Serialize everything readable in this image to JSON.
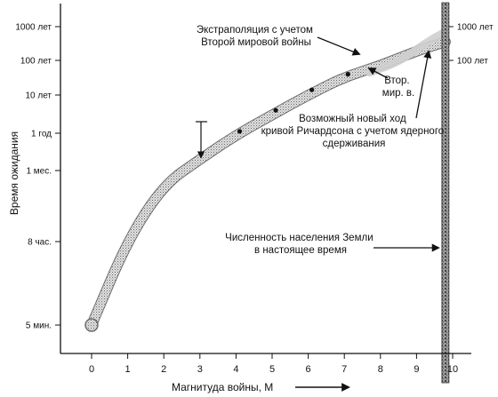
{
  "chart_data": {
    "type": "line",
    "title": "",
    "xlabel": "Магнитуда войны, М",
    "ylabel": "Время ожидания",
    "xlim": [
      -0.5,
      10.2
    ],
    "x_ticks": [
      0,
      1,
      2,
      3,
      4,
      5,
      6,
      7,
      8,
      9,
      10
    ],
    "y_ticks": [
      {
        "label": "1000 лет",
        "level": 7
      },
      {
        "label": "100 лет",
        "level": 6
      },
      {
        "label": "10 лет",
        "level": 5
      },
      {
        "label": "1 год",
        "level": 4
      },
      {
        "label": "1 мес.",
        "level": 3
      },
      {
        "label": "8 час.",
        "level": 2
      },
      {
        "label": "5 мин.",
        "level": 1
      }
    ],
    "right_y_ticks": [
      {
        "label": "1000 лет",
        "level": 7
      },
      {
        "label": "100 лет",
        "level": 6
      }
    ],
    "grid": false,
    "series": [
      {
        "style": "shaded band",
        "x": [
          0,
          1,
          2,
          3,
          4,
          5,
          6,
          7,
          8,
          9,
          9.8
        ],
        "y": [
          1.0,
          2.02,
          2.8,
          3.3,
          3.95,
          4.48,
          5.0,
          5.52,
          5.85,
          6.28,
          6.55
        ]
      },
      {
        "style": "markers",
        "x": [
          4.1,
          5.1,
          6.1,
          7.1
        ],
        "y": [
          4.05,
          4.6,
          5.15,
          5.6
        ]
      },
      {
        "style": "extrapolation band",
        "x": [
          7.7,
          8.5,
          9.3,
          9.8
        ],
        "y": [
          5.65,
          5.95,
          6.55,
          6.85
        ]
      }
    ],
    "population_line": {
      "x": 9.8
    },
    "annotations": {
      "extrapolation": "Экстраполяция с учетом Второй мировой войны",
      "ww2": "Втор. мир. в.",
      "nuclear": "Возможный новый ход кривой Ричардсона с учетом ядерного сдерживания",
      "population": "Численность населения Земли в настоящее время"
    },
    "colors": {
      "band": "#b8b8b8",
      "band_border": "#6e6e6e",
      "population_bar": "#8a8a8a",
      "ink": "#111111"
    }
  }
}
